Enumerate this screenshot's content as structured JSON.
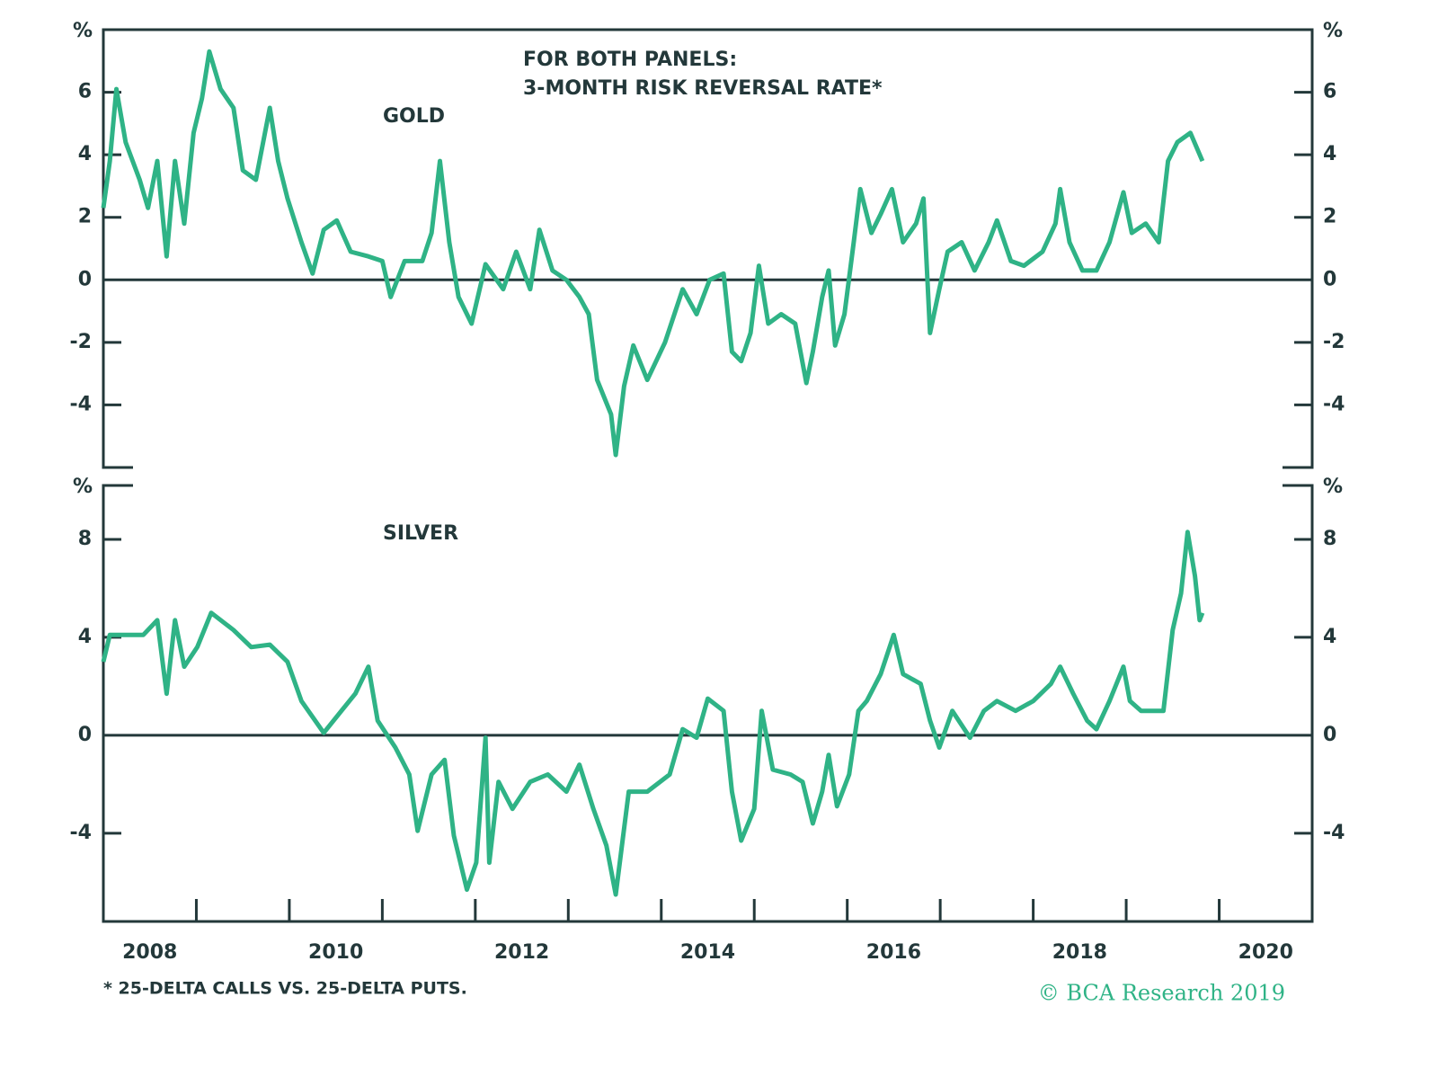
{
  "chart_data": [
    {
      "type": "line",
      "title": "FOR BOTH PANELS:",
      "subtitle": "3-MONTH RISK REVERSAL RATE*",
      "ylabel": "%",
      "xlim": [
        2008,
        2021
      ],
      "ylim": [
        -6,
        8
      ],
      "yticks": [
        -4,
        -2,
        0,
        2,
        4,
        6
      ],
      "x": [
        2008.0,
        2008.07,
        2008.14,
        2008.24,
        2008.39,
        2008.48,
        2008.58,
        2008.68,
        2008.77,
        2008.87,
        2008.97,
        2009.06,
        2009.14,
        2009.26,
        2009.4,
        2009.5,
        2009.64,
        2009.79,
        2009.88,
        2009.98,
        2010.13,
        2010.25,
        2010.37,
        2010.51,
        2010.66,
        2010.85,
        2011.0,
        2011.09,
        2011.24,
        2011.43,
        2011.53,
        2011.62,
        2011.72,
        2011.82,
        2011.96,
        2012.11,
        2012.3,
        2012.44,
        2012.59,
        2012.69,
        2012.83,
        2012.98,
        2013.12,
        2013.22,
        2013.31,
        2013.46,
        2013.51,
        2013.6,
        2013.7,
        2013.85,
        2014.04,
        2014.23,
        2014.38,
        2014.52,
        2014.67,
        2014.76,
        2014.86,
        2014.96,
        2015.05,
        2015.15,
        2015.29,
        2015.44,
        2015.56,
        2015.63,
        2015.73,
        2015.8,
        2015.87,
        2015.97,
        2016.07,
        2016.14,
        2016.26,
        2016.36,
        2016.48,
        2016.6,
        2016.74,
        2016.82,
        2016.89,
        2016.99,
        2017.08,
        2017.23,
        2017.37,
        2017.52,
        2017.61,
        2017.76,
        2017.9,
        2018.1,
        2018.24,
        2018.29,
        2018.39,
        2018.53,
        2018.68,
        2018.82,
        2018.97,
        2019.06,
        2019.21,
        2019.35,
        2019.45,
        2019.55,
        2019.69,
        2019.82
      ],
      "series": [
        {
          "name": "GOLD",
          "color": "#2fb386",
          "values": [
            2.3,
            3.8,
            6.1,
            4.4,
            3.2,
            2.3,
            3.8,
            0.75,
            3.8,
            1.8,
            4.7,
            5.8,
            7.3,
            6.1,
            5.5,
            3.5,
            3.2,
            5.5,
            3.8,
            2.6,
            1.2,
            0.2,
            1.6,
            1.9,
            0.9,
            0.75,
            0.6,
            -0.55,
            0.6,
            0.6,
            1.5,
            3.8,
            1.2,
            -0.55,
            -1.4,
            0.5,
            -0.3,
            0.9,
            -0.3,
            1.6,
            0.3,
            0.0,
            -0.55,
            -1.1,
            -3.2,
            -4.3,
            -5.6,
            -3.4,
            -2.1,
            -3.2,
            -2.0,
            -0.3,
            -1.1,
            0.0,
            0.2,
            -2.3,
            -2.6,
            -1.7,
            0.45,
            -1.4,
            -1.1,
            -1.4,
            -3.3,
            -2.3,
            -0.55,
            0.3,
            -2.1,
            -1.1,
            1.2,
            2.9,
            1.5,
            2.1,
            2.9,
            1.2,
            1.8,
            2.6,
            -1.7,
            -0.3,
            0.9,
            1.2,
            0.3,
            1.2,
            1.9,
            0.6,
            0.45,
            0.9,
            1.8,
            2.9,
            1.2,
            0.3,
            0.3,
            1.2,
            2.8,
            1.5,
            1.8,
            1.2,
            3.8,
            4.4,
            4.7,
            3.8
          ]
        }
      ]
    },
    {
      "type": "line",
      "ylabel": "%",
      "xlim": [
        2008,
        2021
      ],
      "ylim": [
        -7.6,
        10.2
      ],
      "yticks": [
        -4,
        0,
        4,
        8
      ],
      "xticks": [
        {
          "value": 2008.5,
          "label": "2008"
        },
        {
          "value": 2010.5,
          "label": "2010"
        },
        {
          "value": 2012.5,
          "label": "2012"
        },
        {
          "value": 2014.5,
          "label": "2014"
        },
        {
          "value": 2016.5,
          "label": "2016"
        },
        {
          "value": 2018.5,
          "label": "2018"
        },
        {
          "value": 2020.5,
          "label": "2020"
        }
      ],
      "xtick_marks": [
        2009,
        2010,
        2011,
        2012,
        2013,
        2014,
        2015,
        2016,
        2017,
        2018,
        2019,
        2020
      ],
      "x": [
        2008.0,
        2008.07,
        2008.43,
        2008.58,
        2008.68,
        2008.77,
        2008.87,
        2009.01,
        2009.16,
        2009.4,
        2009.59,
        2009.79,
        2009.98,
        2010.13,
        2010.37,
        2010.56,
        2010.71,
        2010.85,
        2010.95,
        2011.14,
        2011.29,
        2011.38,
        2011.53,
        2011.67,
        2011.77,
        2011.91,
        2012.01,
        2012.11,
        2012.15,
        2012.25,
        2012.4,
        2012.59,
        2012.78,
        2012.98,
        2013.12,
        2013.27,
        2013.41,
        2013.51,
        2013.65,
        2013.85,
        2014.09,
        2014.23,
        2014.38,
        2014.5,
        2014.67,
        2014.76,
        2014.86,
        2015.0,
        2015.08,
        2015.2,
        2015.39,
        2015.52,
        2015.63,
        2015.73,
        2015.8,
        2015.89,
        2016.02,
        2016.12,
        2016.21,
        2016.36,
        2016.5,
        2016.6,
        2016.79,
        2016.89,
        2016.99,
        2017.13,
        2017.32,
        2017.47,
        2017.61,
        2017.81,
        2018.0,
        2018.19,
        2018.29,
        2018.43,
        2018.58,
        2018.68,
        2018.82,
        2018.97,
        2019.04,
        2019.16,
        2019.4,
        2019.5,
        2019.59,
        2019.66,
        2019.74,
        2019.79,
        2019.82
      ],
      "series": [
        {
          "name": "SILVER",
          "color": "#2fb386",
          "values": [
            3.0,
            4.1,
            4.1,
            4.7,
            1.7,
            4.7,
            2.8,
            3.6,
            5.0,
            4.3,
            3.6,
            3.7,
            3.0,
            1.4,
            0.1,
            1.0,
            1.7,
            2.8,
            0.6,
            -0.5,
            -1.6,
            -3.9,
            -1.6,
            -1.0,
            -4.1,
            -6.3,
            -5.2,
            -0.1,
            -5.2,
            -1.9,
            -3.0,
            -1.9,
            -1.6,
            -2.3,
            -1.2,
            -3.0,
            -4.5,
            -6.5,
            -2.3,
            -2.3,
            -1.6,
            0.25,
            -0.1,
            1.5,
            1.0,
            -2.3,
            -4.3,
            -3.0,
            1.0,
            -1.4,
            -1.6,
            -1.9,
            -3.6,
            -2.3,
            -0.8,
            -2.9,
            -1.6,
            1.0,
            1.4,
            2.5,
            4.1,
            2.5,
            2.1,
            0.6,
            -0.5,
            1.0,
            -0.1,
            1.0,
            1.4,
            1.0,
            1.4,
            2.1,
            2.8,
            1.7,
            0.6,
            0.25,
            1.4,
            2.8,
            1.4,
            1.0,
            1.0,
            4.3,
            5.8,
            8.3,
            6.5,
            4.7,
            5.0
          ]
        }
      ]
    }
  ],
  "footnote": "* 25-DELTA CALLS VS. 25-DELTA PUTS.",
  "source": "© BCA Research 2019"
}
